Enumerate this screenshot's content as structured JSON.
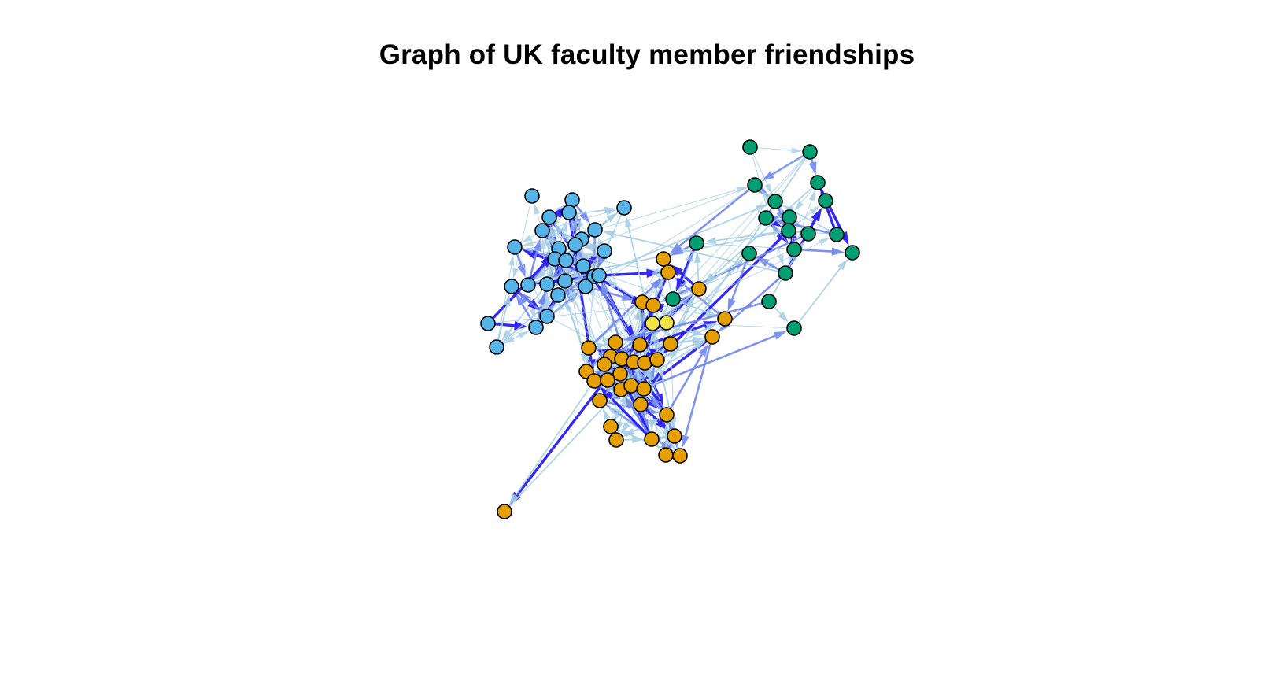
{
  "title": "Graph of UK faculty member friendships",
  "groups": [
    {
      "id": 1,
      "color": "#56B4E9"
    },
    {
      "id": 2,
      "color": "#E69F00"
    },
    {
      "id": 3,
      "color": "#009E73"
    },
    {
      "id": 4,
      "color": "#F0E442"
    }
  ],
  "edge_colors": {
    "weak": "#9ecae1",
    "light": "#a6cfe6",
    "medium": "#6f86ee",
    "strong": "#2a1bf5"
  },
  "node_outline_color": "#000000",
  "node_count": 81
}
